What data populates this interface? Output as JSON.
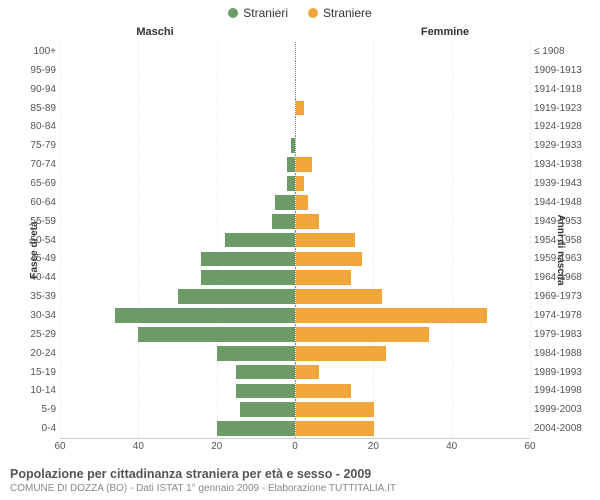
{
  "legend": {
    "male_label": "Stranieri",
    "female_label": "Straniere"
  },
  "headers": {
    "male": "Maschi",
    "female": "Femmine"
  },
  "axis": {
    "left_title": "Fasce di età",
    "right_title": "Anni di nascita",
    "xmax": 60,
    "xticks_left": [
      60,
      40,
      20,
      0
    ],
    "xticks_right": [
      0,
      20,
      40,
      60
    ]
  },
  "colors": {
    "male": "#6d9b68",
    "female": "#f0a63a",
    "grid": "#eeeeee",
    "tick": "#555555",
    "background": "#ffffff"
  },
  "typography": {
    "legend_fontsize": 12,
    "header_fontsize": 11,
    "tick_fontsize": 10,
    "axis_title_fontsize": 10,
    "footer_title_fontsize": 12.5,
    "footer_sub_fontsize": 10
  },
  "chart": {
    "type": "population-pyramid",
    "bar_height_pct": 78
  },
  "rows": [
    {
      "age": "100+",
      "birth": "≤ 1908",
      "m": 0,
      "f": 0
    },
    {
      "age": "95-99",
      "birth": "1909-1913",
      "m": 0,
      "f": 0
    },
    {
      "age": "90-94",
      "birth": "1914-1918",
      "m": 0,
      "f": 0
    },
    {
      "age": "85-89",
      "birth": "1919-1923",
      "m": 0,
      "f": 2
    },
    {
      "age": "80-84",
      "birth": "1924-1928",
      "m": 0,
      "f": 0
    },
    {
      "age": "75-79",
      "birth": "1929-1933",
      "m": 1,
      "f": 0
    },
    {
      "age": "70-74",
      "birth": "1934-1938",
      "m": 2,
      "f": 4
    },
    {
      "age": "65-69",
      "birth": "1939-1943",
      "m": 2,
      "f": 2
    },
    {
      "age": "60-64",
      "birth": "1944-1948",
      "m": 5,
      "f": 3
    },
    {
      "age": "55-59",
      "birth": "1949-1953",
      "m": 6,
      "f": 6
    },
    {
      "age": "50-54",
      "birth": "1954-1958",
      "m": 18,
      "f": 15
    },
    {
      "age": "45-49",
      "birth": "1959-1963",
      "m": 24,
      "f": 17
    },
    {
      "age": "40-44",
      "birth": "1964-1968",
      "m": 24,
      "f": 14
    },
    {
      "age": "35-39",
      "birth": "1969-1973",
      "m": 30,
      "f": 22
    },
    {
      "age": "30-34",
      "birth": "1974-1978",
      "m": 46,
      "f": 49
    },
    {
      "age": "25-29",
      "birth": "1979-1983",
      "m": 40,
      "f": 34
    },
    {
      "age": "20-24",
      "birth": "1984-1988",
      "m": 20,
      "f": 23
    },
    {
      "age": "15-19",
      "birth": "1989-1993",
      "m": 15,
      "f": 6
    },
    {
      "age": "10-14",
      "birth": "1994-1998",
      "m": 15,
      "f": 14
    },
    {
      "age": "5-9",
      "birth": "1999-2003",
      "m": 14,
      "f": 20
    },
    {
      "age": "0-4",
      "birth": "2004-2008",
      "m": 20,
      "f": 20
    }
  ],
  "footer": {
    "title": "Popolazione per cittadinanza straniera per età e sesso - 2009",
    "subtitle": "COMUNE DI DOZZA (BO) - Dati ISTAT 1° gennaio 2009 - Elaborazione TUTTITALIA.IT"
  }
}
